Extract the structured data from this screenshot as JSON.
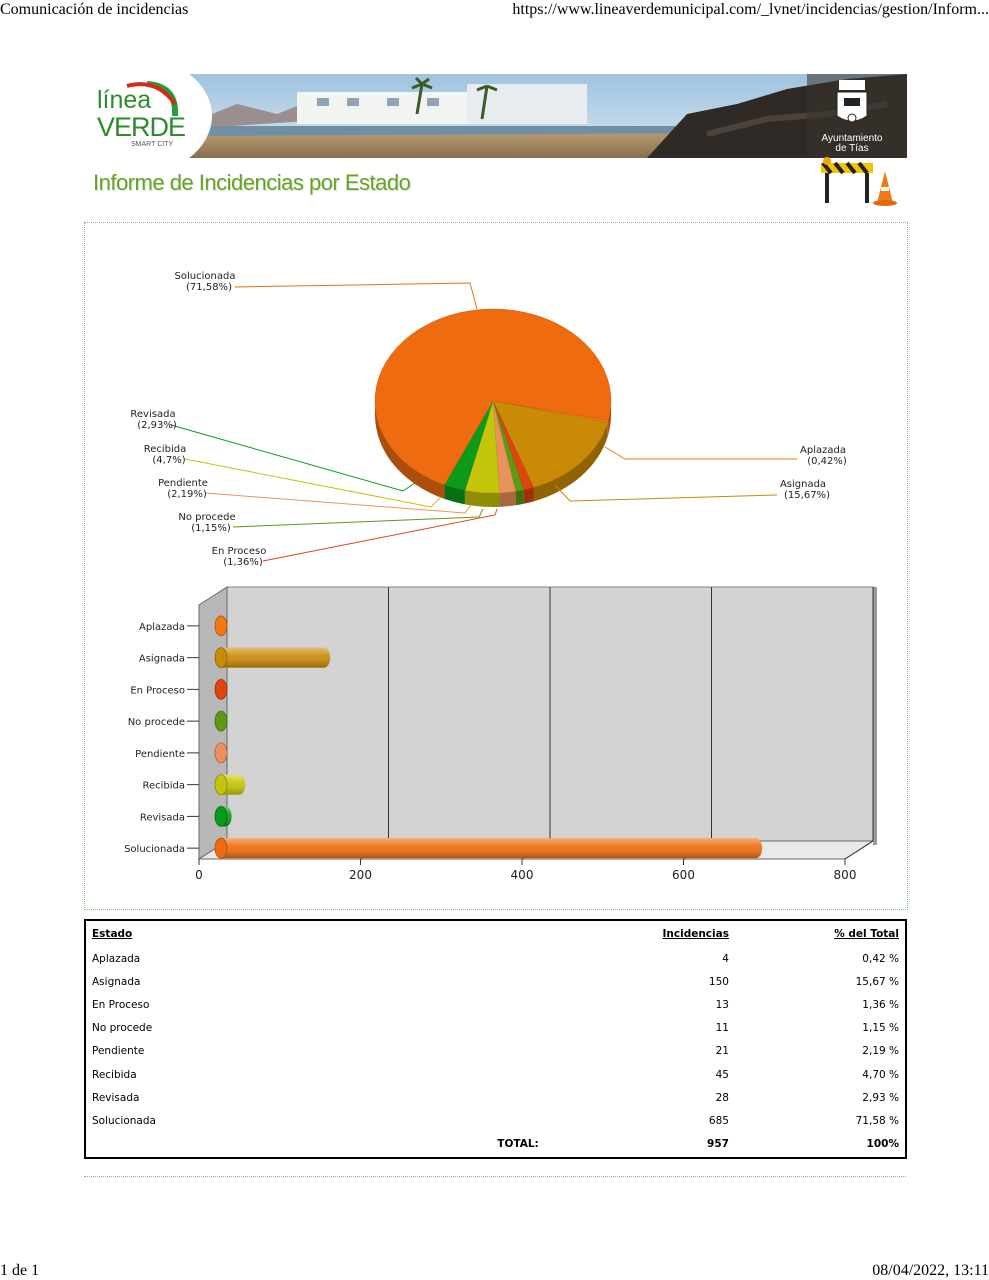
{
  "browser": {
    "page_title": "Comunicación de incidencias",
    "url": "https://www.lineaverdemunicipal.com/_lvnet/incidencias/gestion/Inform...",
    "page_count": "1 de 1",
    "datetime": "08/04/2022, 13:11"
  },
  "header": {
    "logo_line1": "línea",
    "logo_line2": "VERDE",
    "logo_sub": "SMART CITY",
    "council_line1": "Ayuntamiento",
    "council_line2": "de Tías",
    "report_title": "Informe de Incidencias por Estado"
  },
  "colors": {
    "Solucionada": "#ee6c0f",
    "Asignada": "#c98a06",
    "Aplazada": "#f07a10",
    "En Proceso": "#e04410",
    "No procede": "#5c9a14",
    "Pendiente": "#e9925a",
    "Recibida": "#c4c40a",
    "Revisada": "#0c9a1a"
  },
  "chart_data": [
    {
      "type": "pie",
      "title": "",
      "slices": [
        {
          "label": "Aplazada",
          "pct_label": "(0,42%)",
          "value": 0.42
        },
        {
          "label": "Asignada",
          "pct_label": "(15,67%)",
          "value": 15.67
        },
        {
          "label": "En Proceso",
          "pct_label": "(1,36%)",
          "value": 1.36
        },
        {
          "label": "No procede",
          "pct_label": "(1,15%)",
          "value": 1.15
        },
        {
          "label": "Pendiente",
          "pct_label": "(2,19%)",
          "value": 2.19
        },
        {
          "label": "Recibida",
          "pct_label": "(4,7%)",
          "value": 4.7
        },
        {
          "label": "Revisada",
          "pct_label": "(2,93%)",
          "value": 2.93
        },
        {
          "label": "Solucionada",
          "pct_label": "(71,58%)",
          "value": 71.58
        }
      ]
    },
    {
      "type": "bar",
      "orientation": "horizontal",
      "categories": [
        "Aplazada",
        "Asignada",
        "En Proceso",
        "No procede",
        "Pendiente",
        "Recibida",
        "Revisada",
        "Solucionada"
      ],
      "values": [
        4,
        150,
        13,
        11,
        21,
        45,
        28,
        685
      ],
      "xlim": [
        0,
        800
      ],
      "xticks": [
        "0",
        "200",
        "400",
        "600",
        "800"
      ],
      "grid": true
    }
  ],
  "table": {
    "headers": {
      "estado": "Estado",
      "incidencias": "Incidencias",
      "pct": "% del Total"
    },
    "rows": [
      {
        "estado": "Aplazada",
        "incidencias": "4",
        "pct": "0,42 %"
      },
      {
        "estado": "Asignada",
        "incidencias": "150",
        "pct": "15,67 %"
      },
      {
        "estado": "En Proceso",
        "incidencias": "13",
        "pct": "1,36 %"
      },
      {
        "estado": "No procede",
        "incidencias": "11",
        "pct": "1,15 %"
      },
      {
        "estado": "Pendiente",
        "incidencias": "21",
        "pct": "2,19 %"
      },
      {
        "estado": "Recibida",
        "incidencias": "45",
        "pct": "4,70 %"
      },
      {
        "estado": "Revisada",
        "incidencias": "28",
        "pct": "2,93 %"
      },
      {
        "estado": "Solucionada",
        "incidencias": "685",
        "pct": "71,58 %"
      }
    ],
    "total_label": "TOTAL:",
    "total_incidencias": "957",
    "total_pct": "100%"
  }
}
